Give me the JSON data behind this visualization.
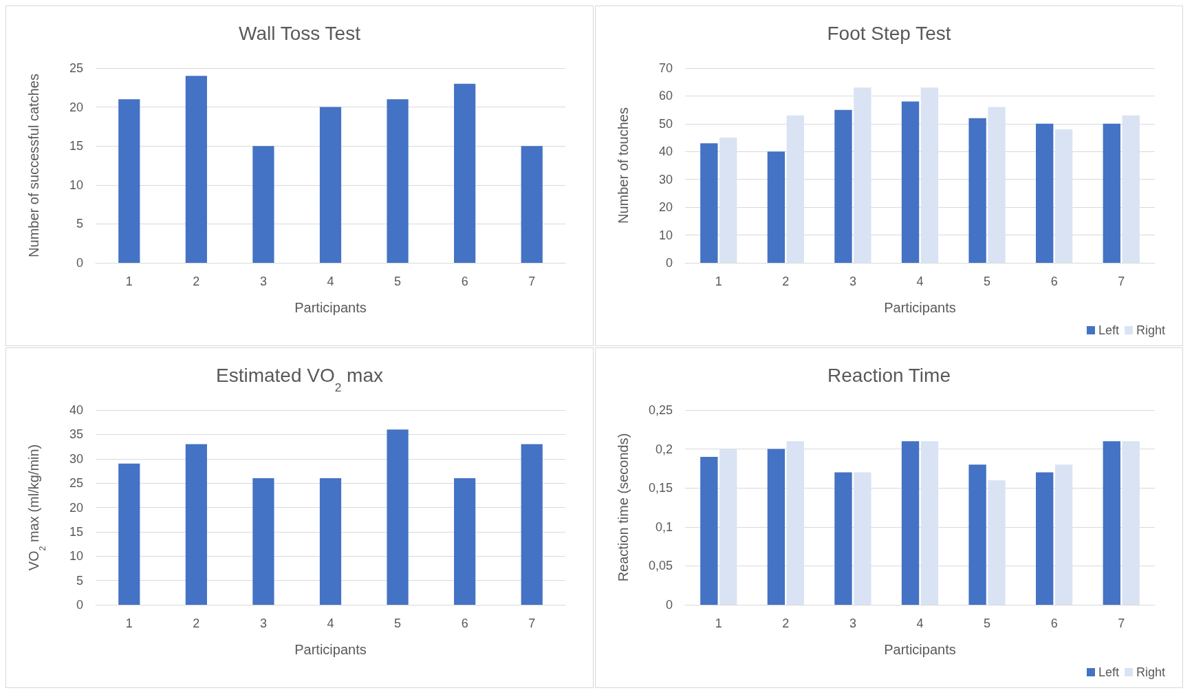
{
  "chart_data": [
    {
      "type": "bar",
      "title": "Wall Toss Test",
      "xlabel": "Participants",
      "ylabel": "Number of successful catches",
      "categories": [
        "1",
        "2",
        "3",
        "4",
        "5",
        "6",
        "7"
      ],
      "values": [
        21,
        24,
        15,
        20,
        21,
        23,
        15
      ],
      "color": "#4472c4",
      "ylim": [
        0,
        25
      ],
      "yticks": [
        0,
        5,
        10,
        15,
        20,
        25
      ],
      "grid": "y",
      "legend": false
    },
    {
      "type": "bar",
      "title": "Foot Step Test",
      "xlabel": "Participants",
      "ylabel": "Number of touches",
      "categories": [
        "1",
        "2",
        "3",
        "4",
        "5",
        "6",
        "7"
      ],
      "series": [
        {
          "name": "Left",
          "color": "#4472c4",
          "values": [
            43,
            40,
            55,
            58,
            52,
            50,
            50
          ]
        },
        {
          "name": "Right",
          "color": "#dae3f3",
          "values": [
            45,
            53,
            63,
            63,
            56,
            48,
            53
          ]
        }
      ],
      "ylim": [
        0,
        70
      ],
      "yticks": [
        0,
        10,
        20,
        30,
        40,
        50,
        60,
        70
      ],
      "grid": "y",
      "legend": "bottom right"
    },
    {
      "type": "bar",
      "title": "Estimated VO$_{2}$ max",
      "xlabel": "Participants",
      "ylabel": "VO$_{2}$ max (ml/kg/min)",
      "categories": [
        "1",
        "2",
        "3",
        "4",
        "5",
        "6",
        "7"
      ],
      "values": [
        29,
        33,
        26,
        26,
        36,
        26,
        33
      ],
      "color": "#4472c4",
      "ylim": [
        0,
        40
      ],
      "yticks": [
        0,
        5,
        10,
        15,
        20,
        25,
        30,
        35,
        40
      ],
      "grid": "y",
      "legend": false
    },
    {
      "type": "bar",
      "title": "Reaction Time",
      "xlabel": "Participants",
      "ylabel": "Reaction time (seconds)",
      "categories": [
        "1",
        "2",
        "3",
        "4",
        "5",
        "6",
        "7"
      ],
      "series": [
        {
          "name": "Left",
          "color": "#4472c4",
          "values": [
            0.19,
            0.2,
            0.17,
            0.21,
            0.18,
            0.17,
            0.21
          ]
        },
        {
          "name": "Right",
          "color": "#dae3f3",
          "values": [
            0.2,
            0.21,
            0.17,
            0.21,
            0.16,
            0.18,
            0.21
          ]
        }
      ],
      "ylim": [
        0,
        0.25
      ],
      "yticks": [
        0,
        {
          "value": 0.05,
          "label": "0,05"
        },
        {
          "value": 0.1,
          "label": "0,1"
        },
        {
          "value": 0.15,
          "label": "0,15"
        },
        {
          "value": 0.2,
          "label": "0,2"
        },
        {
          "value": 0.25,
          "label": "0,25"
        }
      ],
      "grid": "y",
      "legend": "bottom right"
    }
  ]
}
